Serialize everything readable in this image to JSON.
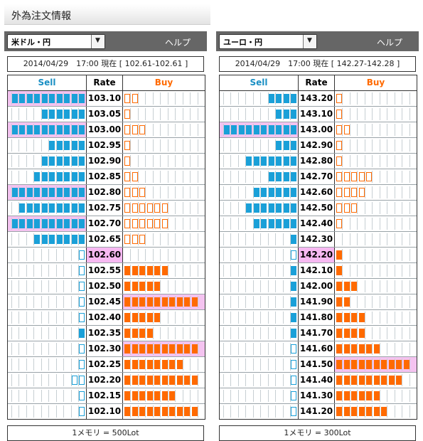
{
  "page_title": "外為注文情報",
  "footer_rows": [],
  "panels": [
    {
      "pair_label": "米ドル・円",
      "help_label": "ヘルプ",
      "info": "2014/04/29　17:00 現在 [ 102.61-102.61 ]",
      "header": {
        "sell": "Sell",
        "rate": "Rate",
        "buy": "Buy"
      },
      "footer": "1メモリ = 500Lot",
      "current_rate": "102.60",
      "rows": [
        {
          "rate": "103.10",
          "sell": 10,
          "buy": 2,
          "sell_hl": true,
          "buy_hl": false
        },
        {
          "rate": "103.05",
          "sell": 6,
          "buy": 1,
          "sell_hl": false,
          "buy_hl": false
        },
        {
          "rate": "103.00",
          "sell": 10,
          "buy": 3,
          "sell_hl": true,
          "buy_hl": false
        },
        {
          "rate": "102.95",
          "sell": 5,
          "buy": 1,
          "sell_hl": false,
          "buy_hl": false
        },
        {
          "rate": "102.90",
          "sell": 6,
          "buy": 1,
          "sell_hl": false,
          "buy_hl": false
        },
        {
          "rate": "102.85",
          "sell": 7,
          "buy": 2,
          "sell_hl": false,
          "buy_hl": false
        },
        {
          "rate": "102.80",
          "sell": 10,
          "buy": 3,
          "sell_hl": true,
          "buy_hl": false
        },
        {
          "rate": "102.75",
          "sell": 9,
          "buy": 6,
          "sell_hl": false,
          "buy_hl": false
        },
        {
          "rate": "102.70",
          "sell": 10,
          "buy": 6,
          "sell_hl": true,
          "buy_hl": false
        },
        {
          "rate": "102.65",
          "sell": 7,
          "buy": 3,
          "sell_hl": false,
          "buy_hl": false
        },
        {
          "rate": "102.60",
          "sell": 1,
          "buy": 0,
          "sell_hl": false,
          "buy_hl": false
        },
        {
          "rate": "102.55",
          "sell": 1,
          "buy": 6,
          "sell_hl": false,
          "buy_hl": false
        },
        {
          "rate": "102.50",
          "sell": 1,
          "buy": 5,
          "sell_hl": false,
          "buy_hl": false
        },
        {
          "rate": "102.45",
          "sell": 1,
          "buy": 10,
          "sell_hl": false,
          "buy_hl": true
        },
        {
          "rate": "102.40",
          "sell": 1,
          "buy": 5,
          "sell_hl": false,
          "buy_hl": false
        },
        {
          "rate": "102.35",
          "sell": 1,
          "buy": 4,
          "sell_hl": false,
          "buy_hl": false
        },
        {
          "rate": "102.30",
          "sell": 1,
          "buy": 10,
          "sell_hl": false,
          "buy_hl": true
        },
        {
          "rate": "102.25",
          "sell": 1,
          "buy": 8,
          "sell_hl": false,
          "buy_hl": false
        },
        {
          "rate": "102.20",
          "sell": 2,
          "buy": 10,
          "sell_hl": false,
          "buy_hl": false
        },
        {
          "rate": "102.15",
          "sell": 1,
          "buy": 7,
          "sell_hl": false,
          "buy_hl": false
        },
        {
          "rate": "102.10",
          "sell": 1,
          "buy": 10,
          "sell_hl": false,
          "buy_hl": false
        }
      ]
    },
    {
      "pair_label": "ユーロ・円",
      "help_label": "ヘルプ",
      "info": "2014/04/29　17:00 現在 [ 142.27-142.28 ]",
      "header": {
        "sell": "Sell",
        "rate": "Rate",
        "buy": "Buy"
      },
      "footer": "1メモリ = 300Lot",
      "current_rate": "142.20",
      "rows": [
        {
          "rate": "143.20",
          "sell": 4,
          "buy": 1,
          "sell_hl": false,
          "buy_hl": false
        },
        {
          "rate": "143.10",
          "sell": 3,
          "buy": 1,
          "sell_hl": false,
          "buy_hl": false
        },
        {
          "rate": "143.00",
          "sell": 10,
          "buy": 2,
          "sell_hl": true,
          "buy_hl": false
        },
        {
          "rate": "142.90",
          "sell": 3,
          "buy": 1,
          "sell_hl": false,
          "buy_hl": false
        },
        {
          "rate": "142.80",
          "sell": 7,
          "buy": 1,
          "sell_hl": false,
          "buy_hl": false
        },
        {
          "rate": "142.70",
          "sell": 4,
          "buy": 5,
          "sell_hl": false,
          "buy_hl": false
        },
        {
          "rate": "142.60",
          "sell": 6,
          "buy": 4,
          "sell_hl": false,
          "buy_hl": false
        },
        {
          "rate": "142.50",
          "sell": 7,
          "buy": 3,
          "sell_hl": false,
          "buy_hl": false
        },
        {
          "rate": "142.40",
          "sell": 6,
          "buy": 1,
          "sell_hl": false,
          "buy_hl": false
        },
        {
          "rate": "142.30",
          "sell": 1,
          "buy": 0,
          "sell_hl": false,
          "buy_hl": false
        },
        {
          "rate": "142.20",
          "sell": 1,
          "buy": 1,
          "sell_hl": false,
          "buy_hl": false
        },
        {
          "rate": "142.10",
          "sell": 1,
          "buy": 1,
          "sell_hl": false,
          "buy_hl": false
        },
        {
          "rate": "142.00",
          "sell": 1,
          "buy": 3,
          "sell_hl": false,
          "buy_hl": false
        },
        {
          "rate": "141.90",
          "sell": 1,
          "buy": 2,
          "sell_hl": false,
          "buy_hl": false
        },
        {
          "rate": "141.80",
          "sell": 1,
          "buy": 4,
          "sell_hl": false,
          "buy_hl": false
        },
        {
          "rate": "141.70",
          "sell": 1,
          "buy": 4,
          "sell_hl": false,
          "buy_hl": false
        },
        {
          "rate": "141.60",
          "sell": 1,
          "buy": 6,
          "sell_hl": false,
          "buy_hl": false
        },
        {
          "rate": "141.50",
          "sell": 1,
          "buy": 10,
          "sell_hl": false,
          "buy_hl": true
        },
        {
          "rate": "141.40",
          "sell": 1,
          "buy": 9,
          "sell_hl": false,
          "buy_hl": false
        },
        {
          "rate": "141.30",
          "sell": 1,
          "buy": 6,
          "sell_hl": false,
          "buy_hl": false
        },
        {
          "rate": "141.20",
          "sell": 1,
          "buy": 7,
          "sell_hl": false,
          "buy_hl": false
        }
      ]
    }
  ],
  "chart_data": [
    {
      "type": "bar",
      "categories": [
        "103.10",
        "103.05",
        "103.00",
        "102.95",
        "102.90",
        "102.85",
        "102.80",
        "102.75",
        "102.70",
        "102.65",
        "102.60",
        "102.55",
        "102.50",
        "102.45",
        "102.40",
        "102.35",
        "102.30",
        "102.25",
        "102.20",
        "102.15",
        "102.10"
      ],
      "series": [
        {
          "name": "Sell",
          "values": [
            10,
            6,
            10,
            5,
            6,
            7,
            10,
            9,
            10,
            7,
            1,
            1,
            1,
            1,
            1,
            1,
            1,
            1,
            2,
            1,
            1
          ]
        },
        {
          "name": "Buy",
          "values": [
            2,
            1,
            3,
            1,
            1,
            2,
            3,
            6,
            6,
            3,
            0,
            6,
            5,
            10,
            5,
            4,
            10,
            8,
            10,
            7,
            10
          ]
        }
      ],
      "title": "",
      "xlabel": "Rate",
      "ylabel": ""
    },
    {
      "type": "bar",
      "categories": [
        "143.20",
        "143.10",
        "143.00",
        "142.90",
        "142.80",
        "142.70",
        "142.60",
        "142.50",
        "142.40",
        "142.30",
        "142.20",
        "142.10",
        "142.00",
        "141.90",
        "141.80",
        "141.70",
        "141.60",
        "141.50",
        "141.40",
        "141.30",
        "141.20"
      ],
      "series": [
        {
          "name": "Sell",
          "values": [
            4,
            3,
            10,
            3,
            7,
            4,
            6,
            7,
            6,
            1,
            1,
            1,
            1,
            1,
            1,
            1,
            1,
            1,
            1,
            1,
            1
          ]
        },
        {
          "name": "Buy",
          "values": [
            1,
            1,
            2,
            1,
            1,
            5,
            4,
            3,
            1,
            0,
            1,
            1,
            3,
            2,
            4,
            4,
            6,
            10,
            9,
            6,
            7
          ]
        }
      ],
      "title": "",
      "xlabel": "Rate",
      "ylabel": ""
    }
  ],
  "colors": {
    "sell_fill": "#1aa0d8",
    "buy_fill": "#ff6a00",
    "sell_header": "#1a8fc4",
    "buy_header": "#ff6a00",
    "row_highlight": "#f4c3f0",
    "bar_bg": "#666666"
  }
}
